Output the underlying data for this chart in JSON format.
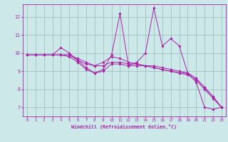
{
  "xlabel": "Windchill (Refroidissement éolien,°C)",
  "xlim": [
    -0.5,
    23.5
  ],
  "ylim": [
    6.5,
    12.7
  ],
  "yticks": [
    7,
    8,
    9,
    10,
    11,
    12
  ],
  "xticks": [
    0,
    1,
    2,
    3,
    4,
    5,
    6,
    7,
    8,
    9,
    10,
    11,
    12,
    13,
    14,
    15,
    16,
    17,
    18,
    19,
    20,
    21,
    22,
    23
  ],
  "background_color": "#cce8e8",
  "line_color": "#aa22aa",
  "grid_color": "#99bbbb",
  "lines": [
    [
      9.9,
      9.9,
      9.9,
      9.9,
      10.3,
      10.0,
      9.6,
      9.2,
      8.9,
      9.1,
      9.9,
      12.2,
      9.3,
      9.5,
      10.0,
      12.5,
      10.4,
      10.8,
      10.4,
      8.9,
      8.4,
      7.0,
      6.9,
      7.0
    ],
    [
      9.9,
      9.9,
      9.9,
      9.9,
      9.9,
      9.9,
      9.7,
      9.5,
      9.3,
      9.3,
      9.5,
      9.5,
      9.4,
      9.4,
      9.3,
      9.3,
      9.2,
      9.1,
      9.0,
      8.9,
      8.6,
      8.1,
      7.6,
      7.0
    ],
    [
      9.9,
      9.9,
      9.9,
      9.9,
      9.9,
      9.8,
      9.5,
      9.1,
      8.9,
      9.0,
      9.4,
      9.4,
      9.3,
      9.3,
      9.3,
      9.2,
      9.1,
      9.0,
      8.9,
      8.9,
      8.6,
      8.1,
      7.6,
      7.0
    ],
    [
      9.9,
      9.9,
      9.9,
      9.9,
      9.9,
      9.9,
      9.6,
      9.4,
      9.3,
      9.5,
      9.8,
      9.7,
      9.5,
      9.4,
      9.3,
      9.2,
      9.1,
      9.0,
      8.9,
      8.8,
      8.5,
      8.0,
      7.5,
      7.0
    ]
  ]
}
